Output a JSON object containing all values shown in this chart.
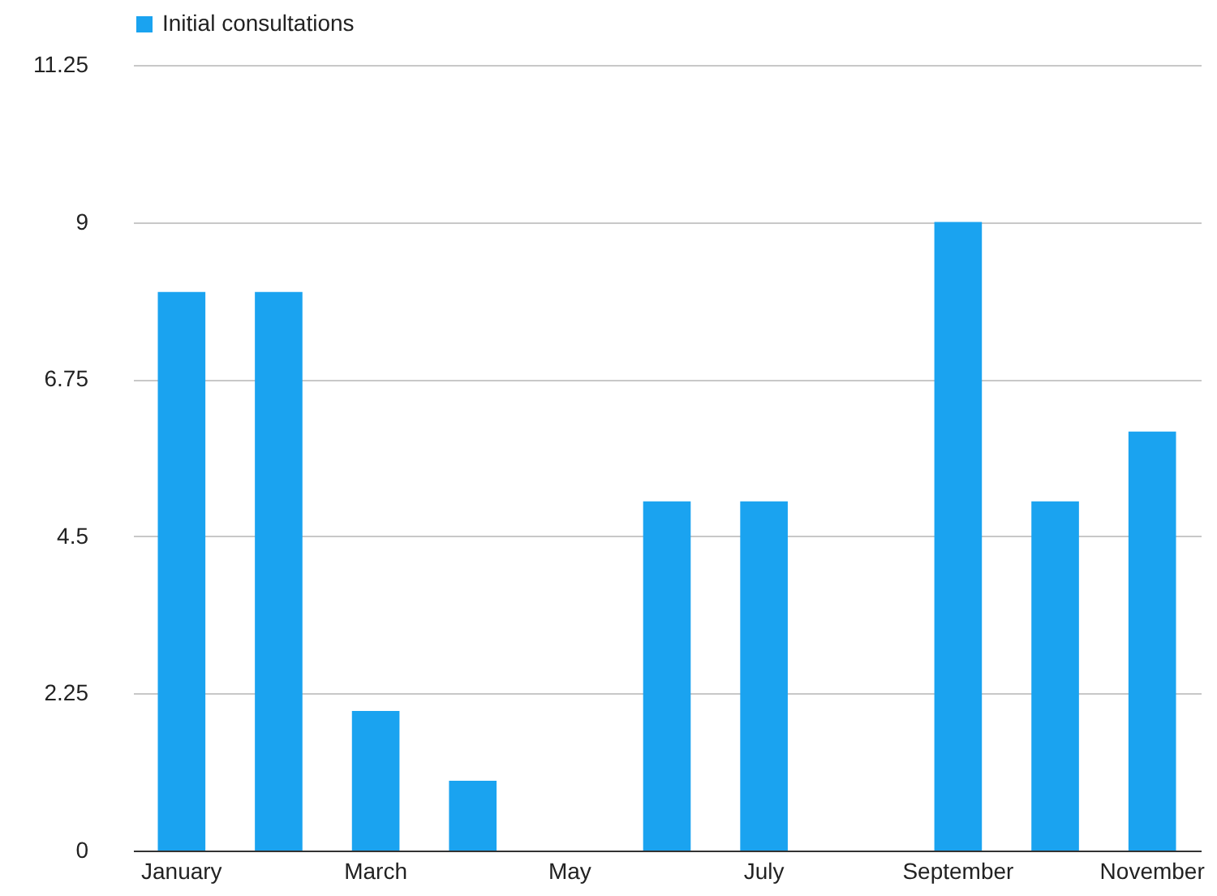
{
  "chart_data": {
    "type": "bar",
    "categories": [
      "January",
      null,
      "March",
      null,
      "May",
      null,
      "July",
      null,
      "September",
      null,
      "November"
    ],
    "series": [
      {
        "name": "Initial consultations",
        "color": "#1aa3f0",
        "values": [
          8,
          8,
          2,
          1,
          0,
          5,
          5,
          0,
          9,
          5,
          6
        ]
      }
    ],
    "ylim": [
      0,
      11.25
    ],
    "yticks": [
      0,
      2.25,
      4.5,
      6.75,
      9,
      11.25
    ],
    "grid": "y",
    "legend": "top"
  }
}
